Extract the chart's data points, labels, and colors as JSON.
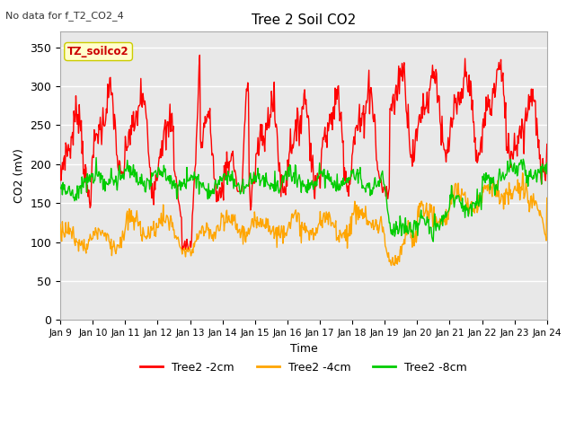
{
  "title": "Tree 2 Soil CO2",
  "subtitle": "No data for f_T2_CO2_4",
  "xlabel": "Time",
  "ylabel": "CO2 (mV)",
  "ylim": [
    0,
    370
  ],
  "yticks": [
    0,
    50,
    100,
    150,
    200,
    250,
    300,
    350
  ],
  "background_color": "#ffffff",
  "plot_bg_color": "#e8e8e8",
  "grid_color": "#ffffff",
  "annotation_box": "TZ_soilco2",
  "annotation_color": "#cc0000",
  "annotation_bg": "#ffffcc",
  "annotation_edge": "#cccc00",
  "legend_entries": [
    "Tree2 -2cm",
    "Tree2 -4cm",
    "Tree2 -8cm"
  ],
  "legend_colors": [
    "#ff0000",
    "#ffa500",
    "#00cc00"
  ],
  "line_width": 1.0,
  "n_days": 15,
  "n_points": 720,
  "seed": 7
}
